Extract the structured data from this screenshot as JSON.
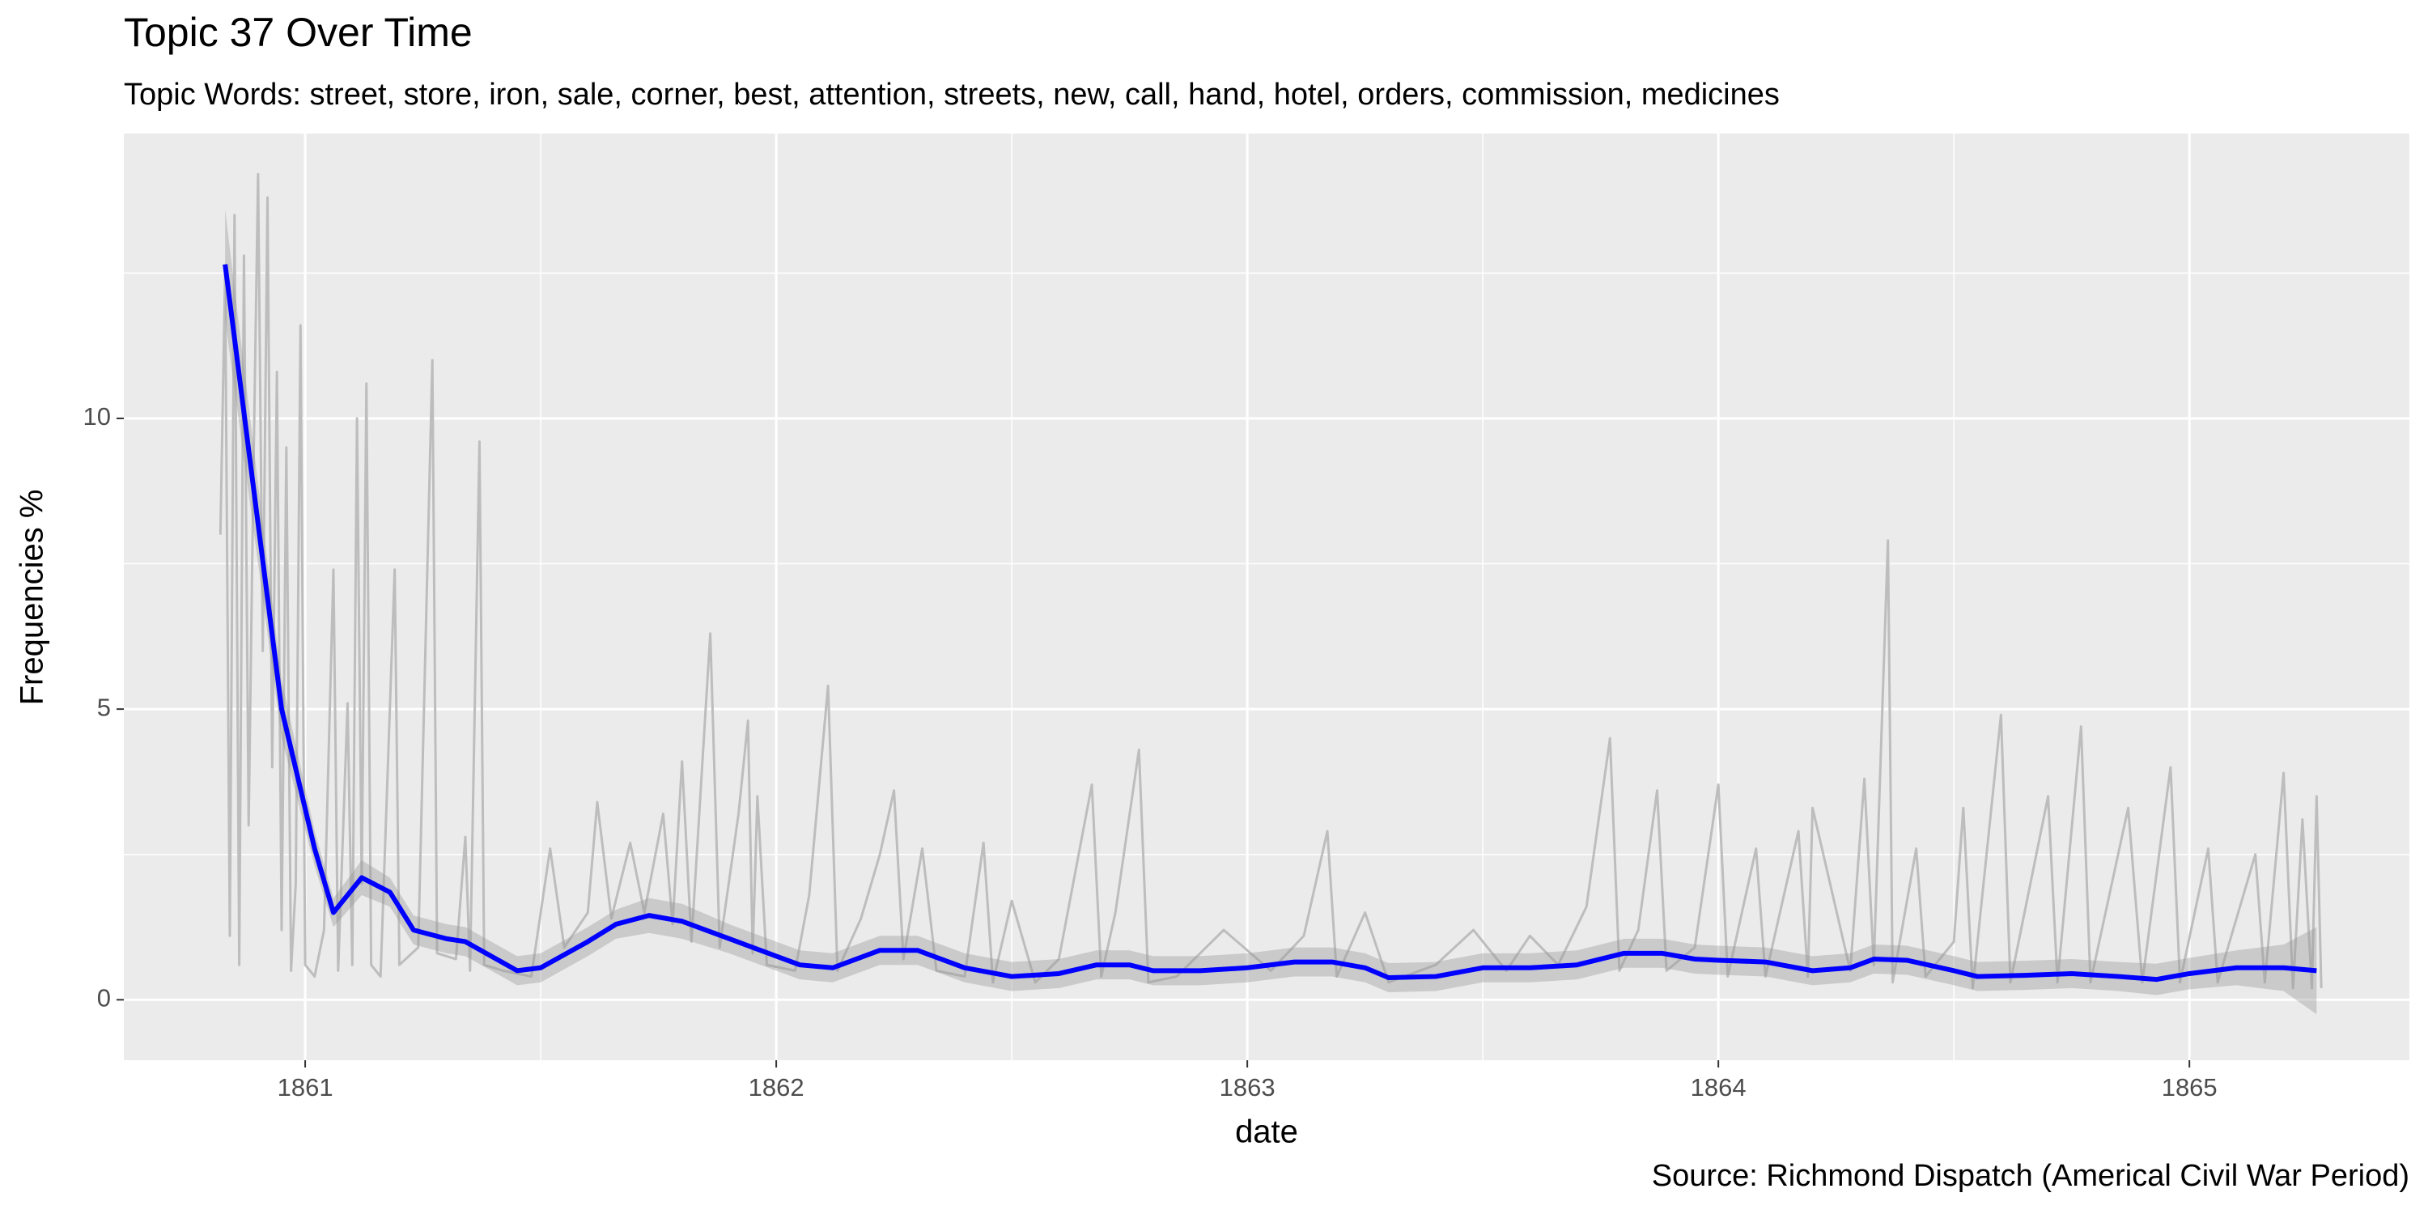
{
  "chart_data": {
    "type": "line",
    "title": "Topic 37 Over Time",
    "subtitle": "Topic Words: street, store, iron, sale, corner, best, attention, streets, new, call, hand, hotel, orders, commission, medicines",
    "xlabel": "date",
    "ylabel": "Frequencies %",
    "caption": "Source: Richmond Dispatch (Americal Civil War Period)",
    "xlim": [
      1860.615,
      1865.467
    ],
    "ylim": [
      -1.04,
      14.9
    ],
    "xticks": [
      1861,
      1862,
      1863,
      1864,
      1865
    ],
    "yticks": [
      0,
      5,
      10
    ],
    "xminor": [
      1861.5,
      1862.5,
      1863.5,
      1864.5
    ],
    "yminor": [
      2.5,
      7.5,
      12.5
    ],
    "grid": true,
    "panel_color": "#ebebeb",
    "grid_color": "#ffffff",
    "series": [
      {
        "color": "#bdbdbd",
        "x": [
          1860.82,
          1860.83,
          1860.84,
          1860.85,
          1860.86,
          1860.87,
          1860.88,
          1860.89,
          1860.9,
          1860.91,
          1860.92,
          1860.93,
          1860.94,
          1860.95,
          1860.96,
          1860.97,
          1860.98,
          1860.99,
          1861.0,
          1861.02,
          1861.04,
          1861.06,
          1861.07,
          1861.09,
          1861.1,
          1861.11,
          1861.12,
          1861.13,
          1861.14,
          1861.16,
          1861.19,
          1861.2,
          1861.24,
          1861.27,
          1861.28,
          1861.32,
          1861.34,
          1861.35,
          1861.37,
          1861.38,
          1861.42,
          1861.48,
          1861.52,
          1861.55,
          1861.6,
          1861.62,
          1861.65,
          1861.69,
          1861.72,
          1861.76,
          1861.78,
          1861.8,
          1861.82,
          1861.86,
          1861.88,
          1861.92,
          1861.94,
          1861.95,
          1861.96,
          1861.98,
          1862.04,
          1862.07,
          1862.11,
          1862.13,
          1862.18,
          1862.22,
          1862.25,
          1862.27,
          1862.31,
          1862.34,
          1862.4,
          1862.44,
          1862.46,
          1862.5,
          1862.55,
          1862.6,
          1862.67,
          1862.69,
          1862.72,
          1862.77,
          1862.79,
          1862.85,
          1862.95,
          1863.05,
          1863.12,
          1863.17,
          1863.19,
          1863.25,
          1863.3,
          1863.4,
          1863.48,
          1863.55,
          1863.6,
          1863.66,
          1863.72,
          1863.77,
          1863.79,
          1863.83,
          1863.87,
          1863.89,
          1863.95,
          1864.0,
          1864.02,
          1864.08,
          1864.1,
          1864.17,
          1864.19,
          1864.2,
          1864.28,
          1864.31,
          1864.33,
          1864.36,
          1864.37,
          1864.42,
          1864.44,
          1864.5,
          1864.52,
          1864.54,
          1864.6,
          1864.62,
          1864.7,
          1864.72,
          1864.77,
          1864.79,
          1864.87,
          1864.9,
          1864.96,
          1864.98,
          1865.04,
          1865.06,
          1865.14,
          1865.16,
          1865.2,
          1865.22,
          1865.24,
          1865.26,
          1865.27,
          1865.28
        ],
        "values": [
          8,
          12.5,
          1.1,
          13.5,
          0.6,
          12.8,
          3,
          9,
          14.2,
          6,
          13.8,
          4,
          10.8,
          1.2,
          9.5,
          0.5,
          2,
          11.6,
          0.6,
          0.4,
          1.2,
          7.4,
          0.5,
          5.1,
          0.6,
          10,
          2,
          10.6,
          0.6,
          0.4,
          7.4,
          0.6,
          0.9,
          11,
          0.8,
          0.7,
          2.8,
          0.5,
          9.6,
          0.6,
          0.5,
          0.4,
          2.6,
          0.9,
          1.5,
          3.4,
          1.4,
          2.7,
          1.5,
          3.2,
          1.3,
          4.1,
          1.0,
          6.3,
          0.9,
          3.2,
          4.8,
          0.8,
          3.5,
          0.6,
          0.5,
          1.8,
          5.4,
          0.5,
          1.4,
          2.5,
          3.6,
          0.7,
          2.6,
          0.5,
          0.4,
          2.7,
          0.3,
          1.7,
          0.3,
          0.7,
          3.7,
          0.4,
          1.5,
          4.3,
          0.3,
          0.4,
          1.2,
          0.5,
          1.1,
          2.9,
          0.4,
          1.5,
          0.3,
          0.6,
          1.2,
          0.5,
          1.1,
          0.6,
          1.6,
          4.5,
          0.5,
          1.2,
          3.6,
          0.5,
          0.9,
          3.7,
          0.4,
          2.6,
          0.4,
          2.9,
          0.4,
          3.3,
          0.5,
          3.8,
          0.6,
          7.9,
          0.3,
          2.6,
          0.4,
          1.0,
          3.3,
          0.2,
          4.9,
          0.3,
          3.5,
          0.3,
          4.7,
          0.3,
          3.3,
          0.3,
          4.0,
          0.3,
          2.6,
          0.3,
          2.5,
          0.3,
          3.9,
          0.2,
          3.1,
          0.2,
          3.5,
          0.2
        ]
      },
      {
        "color": "#0000ff",
        "band_color": "#999999",
        "x": [
          1860.83,
          1860.95,
          1861.02,
          1861.06,
          1861.12,
          1861.18,
          1861.23,
          1861.3,
          1861.34,
          1861.45,
          1861.5,
          1861.6,
          1861.66,
          1861.73,
          1861.8,
          1861.9,
          1862.0,
          1862.05,
          1862.12,
          1862.22,
          1862.3,
          1862.4,
          1862.5,
          1862.6,
          1862.68,
          1862.75,
          1862.8,
          1862.9,
          1863.0,
          1863.1,
          1863.18,
          1863.25,
          1863.3,
          1863.4,
          1863.5,
          1863.6,
          1863.7,
          1863.8,
          1863.88,
          1863.95,
          1864.0,
          1864.1,
          1864.2,
          1864.28,
          1864.33,
          1864.4,
          1864.5,
          1864.55,
          1864.65,
          1864.75,
          1864.85,
          1864.93,
          1865.0,
          1865.1,
          1865.2,
          1865.27
        ],
        "values": [
          12.65,
          5.0,
          2.6,
          1.5,
          2.1,
          1.85,
          1.2,
          1.05,
          1.0,
          0.5,
          0.55,
          1.0,
          1.3,
          1.45,
          1.35,
          1.05,
          0.75,
          0.6,
          0.55,
          0.85,
          0.85,
          0.55,
          0.4,
          0.45,
          0.6,
          0.6,
          0.5,
          0.5,
          0.55,
          0.65,
          0.65,
          0.55,
          0.38,
          0.4,
          0.55,
          0.55,
          0.6,
          0.8,
          0.8,
          0.7,
          0.68,
          0.65,
          0.5,
          0.55,
          0.7,
          0.68,
          0.5,
          0.4,
          0.42,
          0.45,
          0.4,
          0.35,
          0.45,
          0.55,
          0.55,
          0.5
        ],
        "upper": [
          13.6,
          5.5,
          2.9,
          1.75,
          2.4,
          2.1,
          1.45,
          1.3,
          1.25,
          0.75,
          0.8,
          1.25,
          1.55,
          1.75,
          1.65,
          1.3,
          1.0,
          0.85,
          0.8,
          1.1,
          1.1,
          0.8,
          0.65,
          0.7,
          0.85,
          0.85,
          0.75,
          0.75,
          0.8,
          0.9,
          0.9,
          0.8,
          0.63,
          0.65,
          0.8,
          0.8,
          0.85,
          1.05,
          1.05,
          0.95,
          0.93,
          0.9,
          0.75,
          0.8,
          0.95,
          0.93,
          0.75,
          0.65,
          0.67,
          0.7,
          0.65,
          0.62,
          0.72,
          0.85,
          0.95,
          1.25
        ],
        "lower": [
          11.7,
          4.5,
          2.3,
          1.25,
          1.8,
          1.6,
          0.95,
          0.8,
          0.75,
          0.25,
          0.3,
          0.75,
          1.05,
          1.15,
          1.05,
          0.8,
          0.5,
          0.35,
          0.3,
          0.6,
          0.6,
          0.3,
          0.15,
          0.2,
          0.35,
          0.35,
          0.25,
          0.25,
          0.3,
          0.4,
          0.4,
          0.3,
          0.13,
          0.15,
          0.3,
          0.3,
          0.35,
          0.55,
          0.55,
          0.45,
          0.43,
          0.4,
          0.25,
          0.3,
          0.45,
          0.43,
          0.25,
          0.15,
          0.17,
          0.2,
          0.15,
          0.08,
          0.18,
          0.25,
          0.15,
          -0.25
        ]
      }
    ]
  }
}
